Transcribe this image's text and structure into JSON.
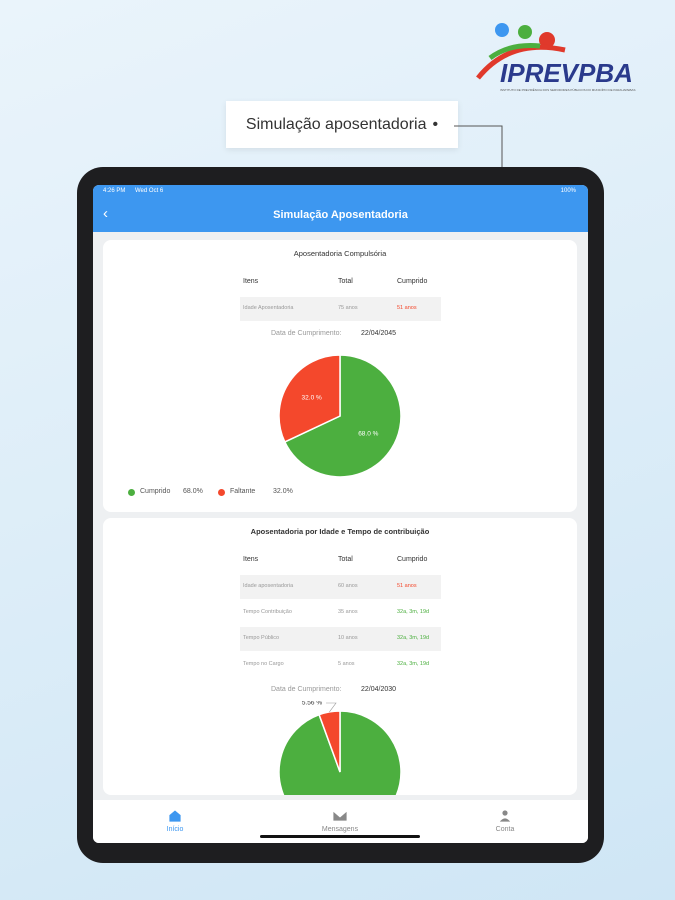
{
  "logo": {
    "name": "IPREVPBA",
    "tagline": "INSTITUTO DE PREVIDÊNCIA DOS SERVIDORES PÚBLICOS DO MUNICÍPIO DE PARAUAPEBAS"
  },
  "caption": "Simulação aposentadoria",
  "status_bar": {
    "time": "4:26 PM",
    "date": "Wed Oct 6",
    "battery": "100%"
  },
  "header": {
    "title": "Simulação Aposentadoria"
  },
  "cards": [
    {
      "title": "Aposentadoria Compulsória",
      "table": {
        "columns": [
          "Itens",
          "Total",
          "Cumprido"
        ],
        "rows": [
          [
            "Idade Aposentadoria",
            "75 anos",
            "51 anos"
          ]
        ]
      },
      "completion_label": "Data de Cumprimento:",
      "completion_date": "22/04/2045",
      "chart": {
        "type": "pie",
        "categories": [
          "Cumprido",
          "Faltante"
        ],
        "values": [
          68.0,
          32.0
        ],
        "value_labels": [
          "68.0 %",
          "32.0 %"
        ],
        "legend_labels": [
          "68.0%",
          "32.0%"
        ],
        "colors": [
          "#4caf3f",
          "#f4482c"
        ],
        "legend": true
      }
    },
    {
      "title": "Aposentadoria por Idade e Tempo de contribuição",
      "table": {
        "columns": [
          "Itens",
          "Total",
          "Cumprido"
        ],
        "rows": [
          [
            "Idade aposentadoria",
            "60 anos",
            "51 anos"
          ],
          [
            "Tempo Contribuição",
            "35 anos",
            "32a, 3m, 19d"
          ],
          [
            "Tempo Público",
            "10 anos",
            "32a, 3m, 19d"
          ],
          [
            "Tempo no Cargo",
            "5 anos",
            "32a, 3m, 19d"
          ]
        ]
      },
      "completion_label": "Data de Cumprimento:",
      "completion_date": "22/04/2030",
      "chart": {
        "type": "pie",
        "values": [
          94.44,
          5.56
        ],
        "value_labels": [
          null,
          "5.56 %"
        ],
        "colors": [
          "#4caf3f",
          "#f4482c"
        ],
        "legend": false
      }
    }
  ],
  "tab_bar": [
    "Início",
    "Mensagens",
    "Conta"
  ]
}
